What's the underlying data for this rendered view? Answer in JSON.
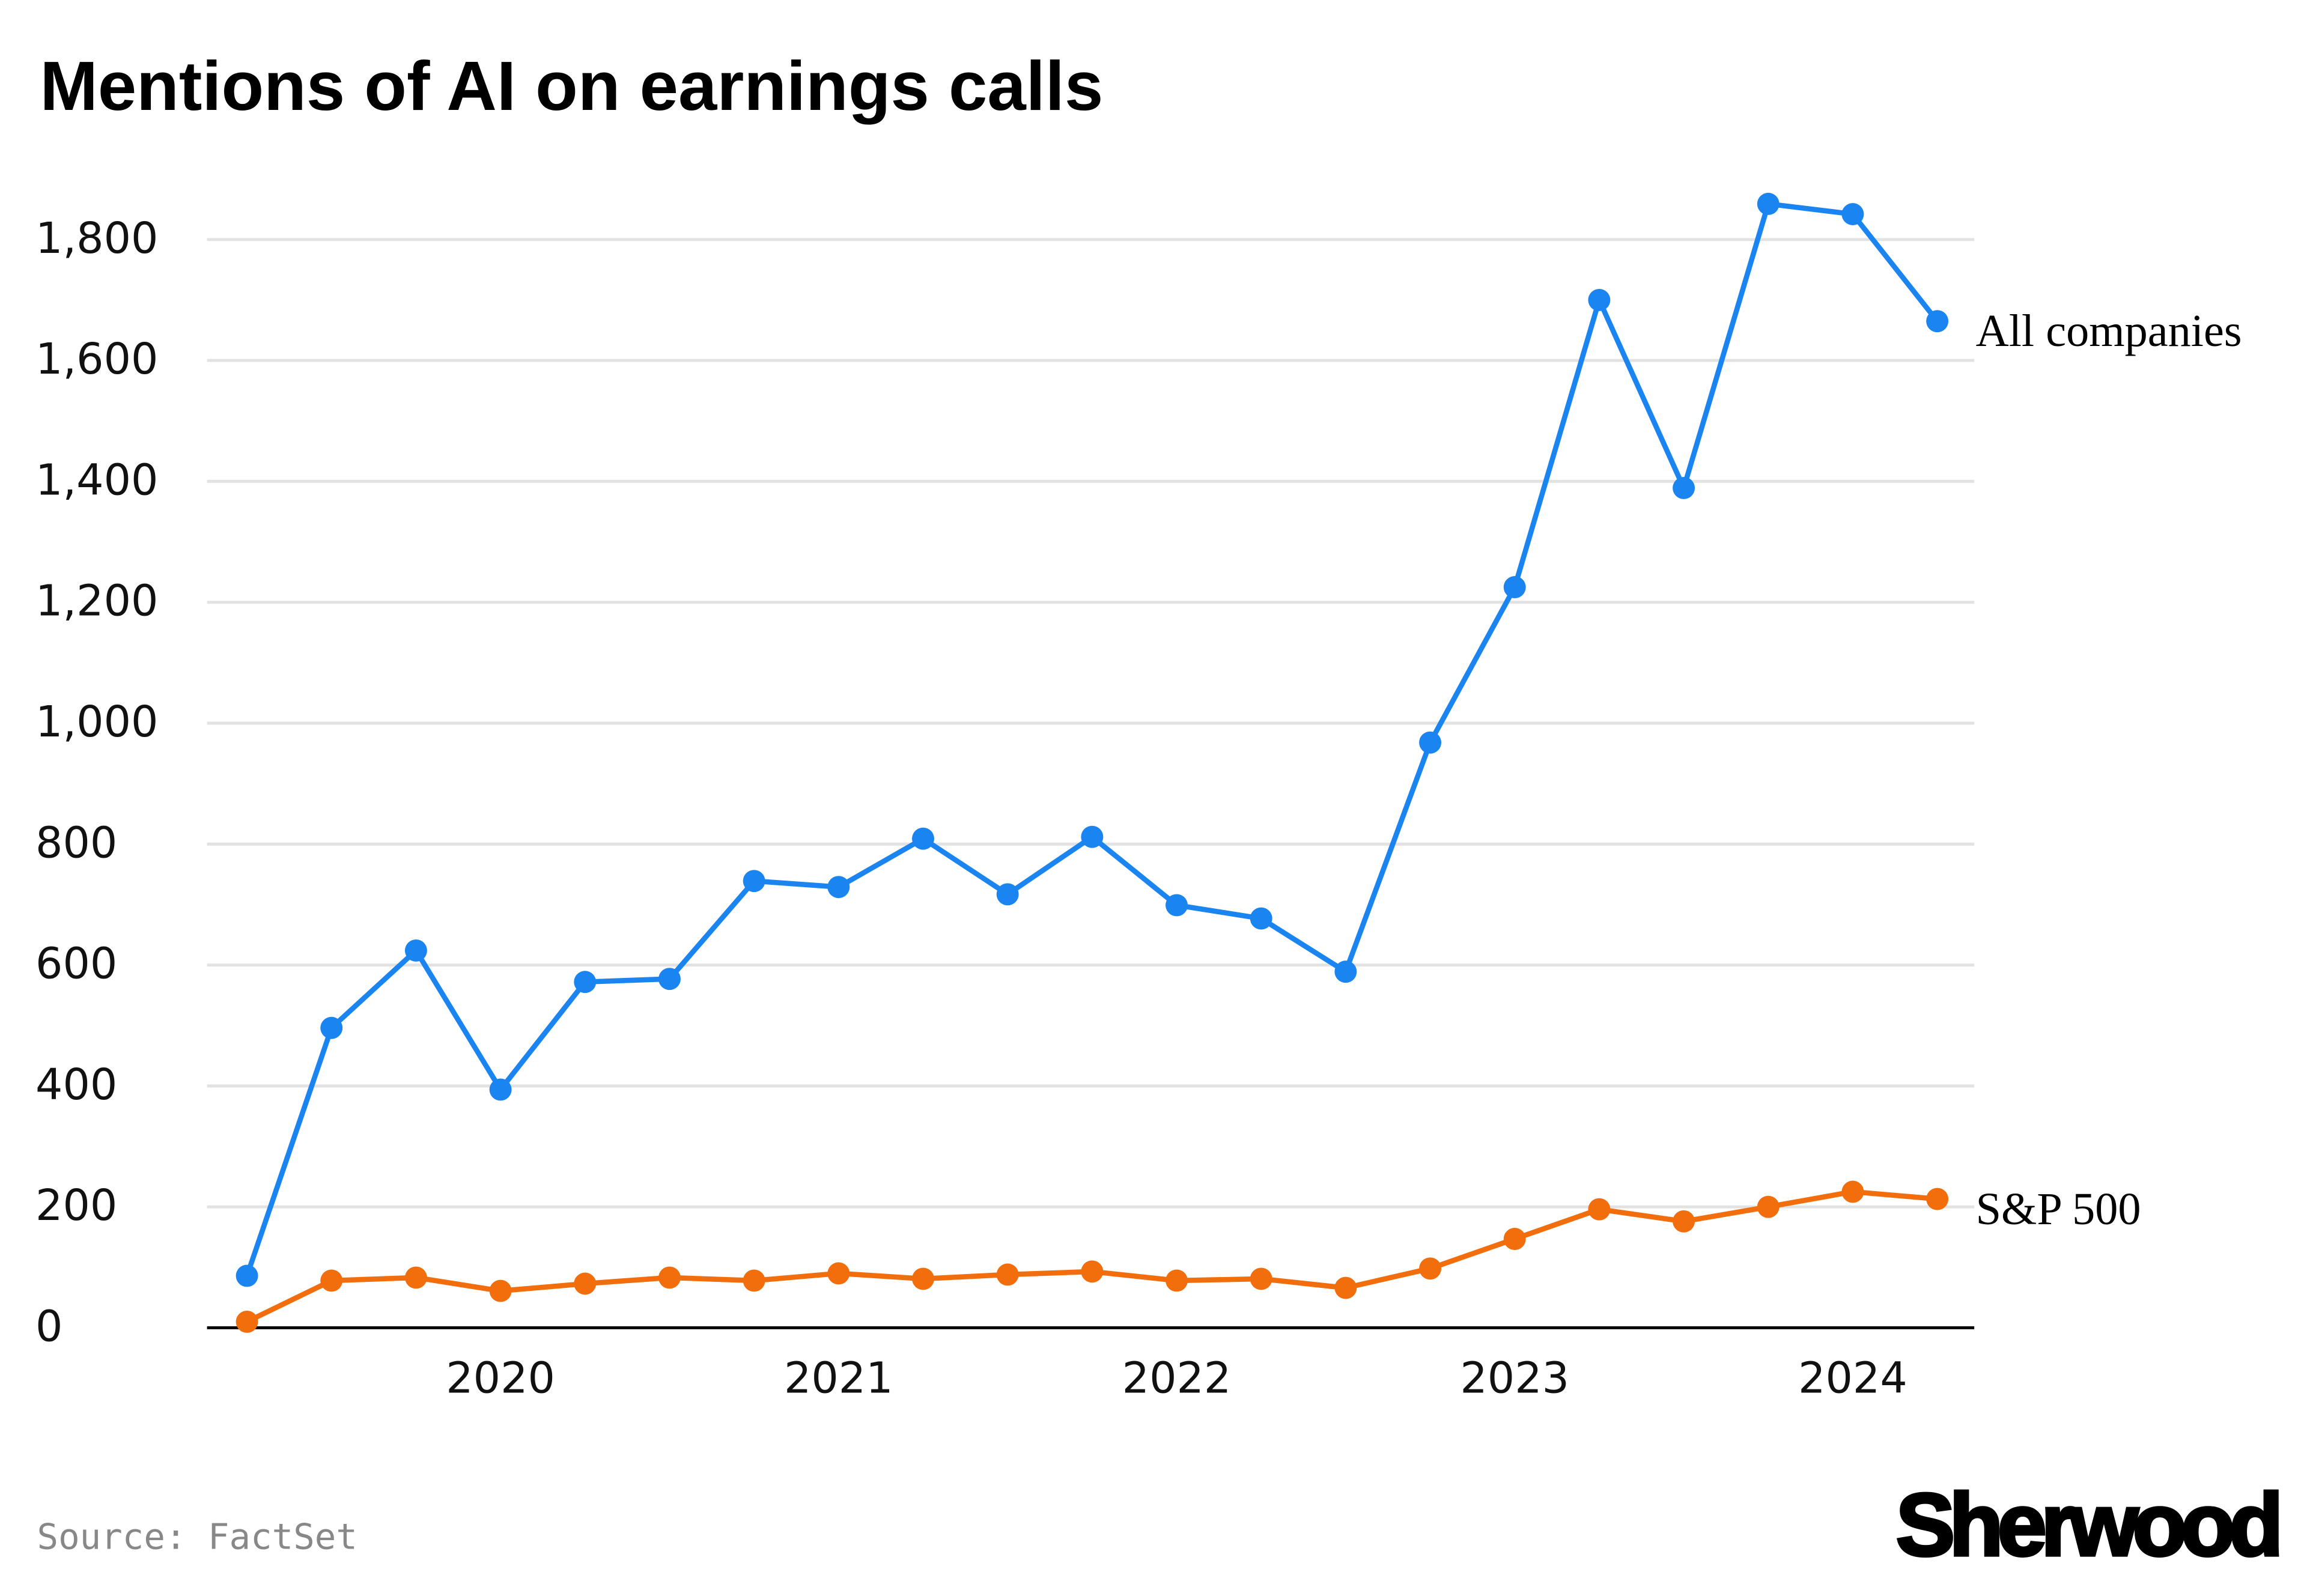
{
  "chart_data": {
    "type": "line",
    "title": "Mentions of AI on earnings calls",
    "source": "Source: FactSet",
    "brand": "Sherwood",
    "categories": [
      null,
      null,
      null,
      "2020",
      null,
      null,
      null,
      "2021",
      null,
      null,
      null,
      "2022",
      null,
      null,
      null,
      "2023",
      null,
      null,
      null,
      "2024",
      null
    ],
    "series": [
      {
        "name": "All companies",
        "color": "#1a85f0",
        "values": [
          86,
          496,
          624,
          394,
          572,
          577,
          739,
          729,
          809,
          717,
          812,
          699,
          677,
          589,
          968,
          1225,
          1700,
          1389,
          1859,
          1842,
          1665
        ]
      },
      {
        "name": "S&P 500",
        "color": "#f26d0c",
        "values": [
          10,
          78,
          83,
          61,
          73,
          83,
          78,
          90,
          81,
          88,
          93,
          78,
          81,
          66,
          98,
          147,
          196,
          176,
          200,
          225,
          213
        ]
      }
    ],
    "ylim": [
      0,
      1880
    ],
    "yticks": [
      0,
      200,
      400,
      600,
      800,
      {
        "value": 1000,
        "label": "1,000"
      },
      {
        "value": 1200,
        "label": "1,200"
      },
      {
        "value": 1400,
        "label": "1,400"
      },
      {
        "value": 1600,
        "label": "1,600"
      },
      {
        "value": 1800,
        "label": "1,800"
      }
    ],
    "grid": true
  }
}
